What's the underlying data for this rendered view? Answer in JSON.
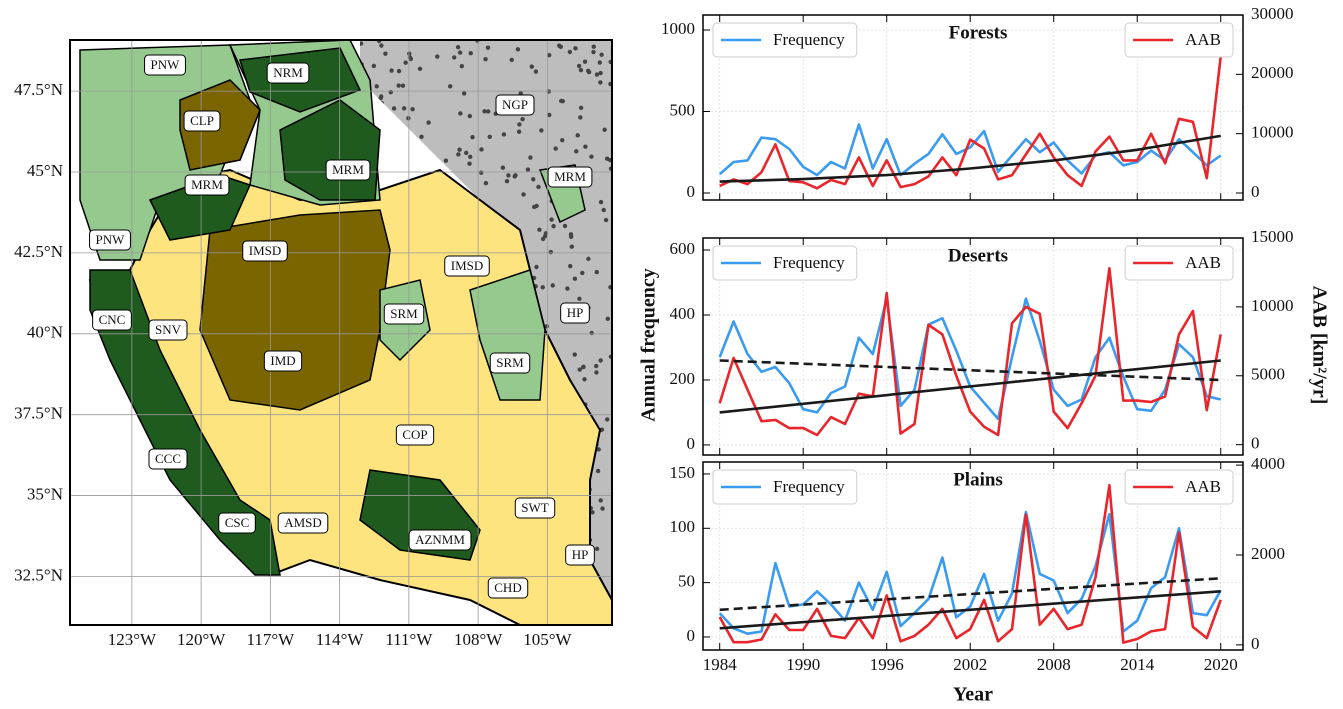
{
  "chart_data": [
    {
      "type": "map",
      "xlim": [
        -125.68,
        -102.2
      ],
      "ylim": [
        31.0,
        49.08
      ],
      "xticks": [
        {
          "value": -123,
          "label": "123°W"
        },
        {
          "value": -120,
          "label": "120°W"
        },
        {
          "value": -117,
          "label": "117°W"
        },
        {
          "value": -114,
          "label": "114°W"
        },
        {
          "value": -111,
          "label": "111°W"
        },
        {
          "value": -108,
          "label": "108°W"
        },
        {
          "value": -105,
          "label": "105°W"
        }
      ],
      "yticks": [
        {
          "value": 47.5,
          "label": "47.5°N"
        },
        {
          "value": 45,
          "label": "45°N"
        },
        {
          "value": 42.5,
          "label": "42.5°N"
        },
        {
          "value": 40,
          "label": "40°N"
        },
        {
          "value": 37.5,
          "label": "37.5°N"
        },
        {
          "value": 35,
          "label": "35°N"
        },
        {
          "value": 32.5,
          "label": "32.5°N"
        }
      ],
      "grid": true,
      "regions": [
        "PNW",
        "NRM",
        "CLP",
        "NGP",
        "MRM",
        "MRM",
        "MRM",
        "PNW",
        "IMSD",
        "IMSD",
        "HP",
        "CNC",
        "SNV",
        "SRM",
        "IMD",
        "SRM",
        "COP",
        "CCC",
        "SWT",
        "CSC",
        "AMSD",
        "AZNMM",
        "HP",
        "CHD"
      ]
    },
    {
      "type": "line",
      "title": "Forests",
      "show_xticklabels": false,
      "x": [
        1984,
        1985,
        1986,
        1987,
        1988,
        1989,
        1990,
        1991,
        1992,
        1993,
        1994,
        1995,
        1996,
        1997,
        1998,
        1999,
        2000,
        2001,
        2002,
        2003,
        2004,
        2005,
        2006,
        2007,
        2008,
        2009,
        2010,
        2011,
        2012,
        2013,
        2014,
        2015,
        2016,
        2017,
        2018,
        2019,
        2020
      ],
      "xlim": [
        1982.8,
        2021.6
      ],
      "xticks": [
        1984,
        1990,
        1996,
        2002,
        2008,
        2014,
        2020
      ],
      "ylim": [
        -43,
        1092
      ],
      "yticks": [
        0,
        500,
        1000
      ],
      "y2lim": [
        -1180,
        30000
      ],
      "y2ticks": [
        0,
        10000,
        20000,
        30000
      ],
      "grid": true,
      "series": [
        {
          "name": "Frequency",
          "color": "#3a9bf0",
          "legend_loc": "upper left",
          "values": [
            115,
            190,
            200,
            340,
            330,
            270,
            160,
            110,
            190,
            150,
            420,
            150,
            330,
            110,
            180,
            240,
            360,
            240,
            280,
            380,
            130,
            230,
            330,
            250,
            310,
            200,
            120,
            230,
            250,
            170,
            190,
            260,
            200,
            330,
            250,
            170,
            230
          ]
        },
        {
          "name": "AAB",
          "color": "#e8262b",
          "axis": "y2",
          "legend_loc": "upper right",
          "values": [
            1200,
            2300,
            1500,
            3500,
            8200,
            2000,
            1800,
            800,
            2200,
            1500,
            6000,
            1200,
            5500,
            1000,
            1500,
            2800,
            6000,
            3000,
            9000,
            7500,
            2300,
            3000,
            6500,
            10000,
            6000,
            3000,
            1200,
            7000,
            9500,
            5500,
            5500,
            10000,
            5000,
            12500,
            12000,
            2500,
            23000
          ]
        }
      ],
      "trends": [
        {
          "color": "#1a1a1a",
          "dashed": false,
          "x": [
            1984,
            1990,
            1996,
            2002,
            2008,
            2014,
            2020
          ],
          "values": [
            70,
            85,
            110,
            150,
            200,
            265,
            350
          ]
        }
      ]
    },
    {
      "type": "line",
      "title": "Deserts",
      "show_xticklabels": false,
      "ylabel": "Annual frequency",
      "y2label": "AAB [km²/yr]",
      "x": [
        1984,
        1985,
        1986,
        1987,
        1988,
        1989,
        1990,
        1991,
        1992,
        1993,
        1994,
        1995,
        1996,
        1997,
        1998,
        1999,
        2000,
        2001,
        2002,
        2003,
        2004,
        2005,
        2006,
        2007,
        2008,
        2009,
        2010,
        2011,
        2012,
        2013,
        2014,
        2015,
        2016,
        2017,
        2018,
        2019,
        2020
      ],
      "xlim": [
        1982.8,
        2021.6
      ],
      "xticks": [
        1984,
        1990,
        1996,
        2002,
        2008,
        2014,
        2020
      ],
      "ylim": [
        -31,
        637
      ],
      "yticks": [
        0,
        200,
        400,
        600
      ],
      "y2lim": [
        -750,
        15000
      ],
      "y2ticks": [
        0,
        5000,
        10000,
        15000
      ],
      "grid": true,
      "series": [
        {
          "name": "Frequency",
          "color": "#3a9bf0",
          "legend_loc": "upper left",
          "values": [
            270,
            380,
            280,
            225,
            240,
            190,
            110,
            100,
            160,
            180,
            330,
            280,
            450,
            120,
            170,
            370,
            390,
            290,
            180,
            130,
            80,
            270,
            450,
            320,
            170,
            120,
            140,
            270,
            330,
            210,
            110,
            105,
            170,
            310,
            270,
            150,
            140
          ]
        },
        {
          "name": "AAB",
          "color": "#e8262b",
          "axis": "y2",
          "legend_loc": "upper right",
          "values": [
            3000,
            6300,
            4000,
            1700,
            1800,
            1200,
            1200,
            700,
            2000,
            1500,
            3700,
            3500,
            11000,
            800,
            1500,
            8700,
            8000,
            5000,
            2400,
            1300,
            700,
            8800,
            10000,
            9500,
            2400,
            1200,
            3000,
            5000,
            12800,
            3200,
            3200,
            3100,
            3500,
            8000,
            9700,
            2500,
            8000
          ]
        }
      ],
      "trends": [
        {
          "color": "#1a1a1a",
          "dashed": false,
          "x": [
            1984,
            2020
          ],
          "values": [
            100,
            260
          ]
        },
        {
          "color": "#1a1a1a",
          "dashed": true,
          "x": [
            1984,
            2020
          ],
          "values": [
            260,
            200
          ]
        }
      ]
    },
    {
      "type": "line",
      "title": "Plains",
      "show_xticklabels": true,
      "xlabel": "Year",
      "x": [
        1984,
        1985,
        1986,
        1987,
        1988,
        1989,
        1990,
        1991,
        1992,
        1993,
        1994,
        1995,
        1996,
        1997,
        1998,
        1999,
        2000,
        2001,
        2002,
        2003,
        2004,
        2005,
        2006,
        2007,
        2008,
        2009,
        2010,
        2011,
        2012,
        2013,
        2014,
        2015,
        2016,
        2017,
        2018,
        2019,
        2020
      ],
      "xlim": [
        1982.8,
        2021.6
      ],
      "xticks": [
        1984,
        1990,
        1996,
        2002,
        2008,
        2014,
        2020
      ],
      "ylim": [
        -12,
        161
      ],
      "yticks": [
        0,
        50,
        100,
        150
      ],
      "y2lim": [
        -114,
        4069
      ],
      "y2ticks": [
        0,
        2000,
        4000
      ],
      "grid": true,
      "series": [
        {
          "name": "Frequency",
          "color": "#3a9bf0",
          "legend_loc": "upper left",
          "values": [
            22,
            8,
            3,
            5,
            68,
            28,
            30,
            42,
            30,
            15,
            50,
            25,
            60,
            10,
            22,
            35,
            73,
            18,
            28,
            58,
            15,
            40,
            115,
            58,
            52,
            22,
            35,
            65,
            113,
            5,
            15,
            45,
            55,
            100,
            22,
            20,
            43
          ]
        },
        {
          "name": "AAB",
          "color": "#e8262b",
          "axis": "y2",
          "legend_loc": "upper right",
          "values": [
            620,
            60,
            60,
            120,
            680,
            330,
            330,
            800,
            200,
            150,
            600,
            150,
            1100,
            80,
            200,
            450,
            800,
            150,
            350,
            1000,
            80,
            350,
            2900,
            450,
            800,
            350,
            450,
            1500,
            3550,
            50,
            130,
            300,
            350,
            2500,
            400,
            150,
            1000
          ]
        }
      ],
      "trends": [
        {
          "color": "#1a1a1a",
          "dashed": false,
          "x": [
            1984,
            2020
          ],
          "values": [
            8,
            42
          ]
        },
        {
          "color": "#1a1a1a",
          "dashed": true,
          "x": [
            1984,
            2020
          ],
          "values": [
            25,
            54
          ]
        }
      ]
    }
  ]
}
